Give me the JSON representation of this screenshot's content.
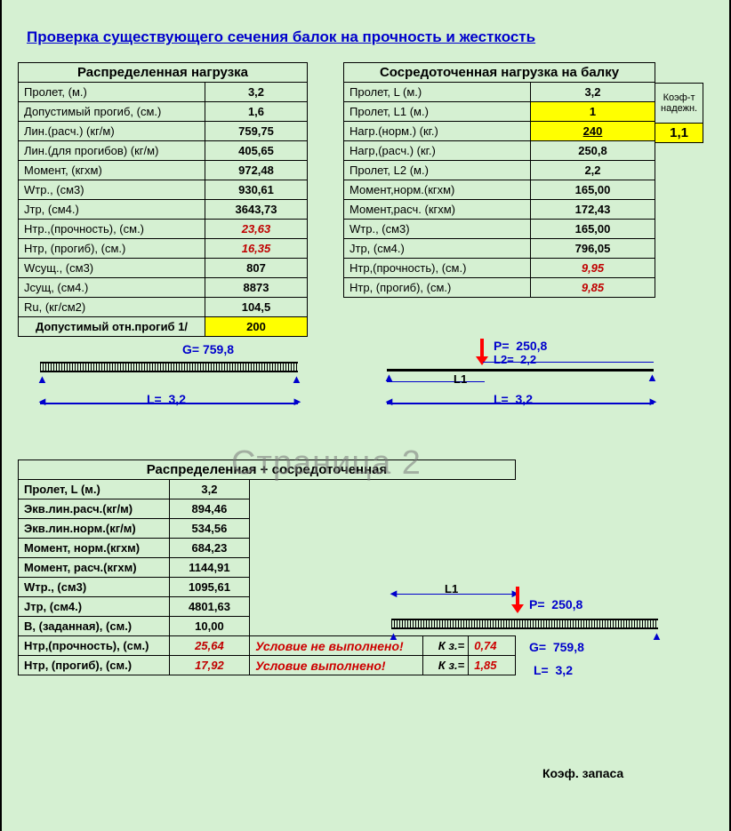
{
  "title": "Проверка существующего сечения балок на прочность и жесткость",
  "watermark": "Страница 2",
  "t1": {
    "header": "Распределенная нагрузка",
    "rows": [
      {
        "l": "Пролет,          (м.)",
        "v": "3,2"
      },
      {
        "l": "Допустимый прогиб, (см.)",
        "v": "1,6"
      },
      {
        "l": "Лин.(расч.)     (кг/м)",
        "v": "759,75"
      },
      {
        "l": "Лин.(для прогибов)   (кг/м)",
        "v": "405,65"
      },
      {
        "l": "Момент,        (кгхм)",
        "v": "972,48"
      },
      {
        "l": "Wтр.,            (см3)",
        "v": "930,61"
      },
      {
        "l": "Jтр,              (см4.)",
        "v": "3643,73"
      },
      {
        "l": "Нтр.,(прочность), (см.)",
        "v": "23,63",
        "red": true
      },
      {
        "l": "Нтр, (прогиб),    (см.)",
        "v": "16,35",
        "red": true
      },
      {
        "l": "Wсущ.,            (см3)",
        "v": "807"
      },
      {
        "l": "Jсущ,             (см4.)",
        "v": "8873"
      },
      {
        "l": "Ru,              (кг/см2)",
        "v": "104,5"
      }
    ],
    "deflection_label": "Допустимый отн.прогиб 1/",
    "deflection_value": "200"
  },
  "t2": {
    "header": "Сосредоточенная нагрузка на балку",
    "koef_label": "Коэф-т надежн.",
    "koef_value": "1,1",
    "rows": [
      {
        "l": "Пролет,   L       (м.)",
        "v": "3,2"
      },
      {
        "l": "Пролет,   L1     (м.)",
        "v": "1",
        "yellow": true
      },
      {
        "l": "Нагр.(норм.)     (кг.)",
        "v": "240",
        "yellow": true,
        "u": true
      },
      {
        "l": "Нагр,(расч.)     (кг.)",
        "v": "250,8"
      },
      {
        "l": "Пролет,   L2     (м.)",
        "v": "2,2"
      },
      {
        "l": "Момент,норм.(кгхм)",
        "v": "165,00"
      },
      {
        "l": "Момент,расч. (кгхм)",
        "v": "172,43"
      },
      {
        "l": "Wтр.,            (см3)",
        "v": "165,00"
      },
      {
        "l": "Jтр,              (см4.)",
        "v": "796,05"
      },
      {
        "l": "Нтр,(прочность),   (см.)",
        "v": "9,95",
        "red": true
      },
      {
        "l": "Нтр, (прогиб),     (см.)",
        "v": "9,85",
        "red": true
      }
    ]
  },
  "d1": {
    "G": "759,8",
    "L": "3,2"
  },
  "d2": {
    "P": "250,8",
    "L2": "2,2",
    "L1": "L1",
    "L": "3,2"
  },
  "t3": {
    "header": "Распределенная + сосредоточенная",
    "rows": [
      {
        "l": "Пролет,  L      (м.)",
        "v": "3,2"
      },
      {
        "l": "Экв.лин.расч.(кг/м)",
        "v": "894,46"
      },
      {
        "l": "Экв.лин.норм.(кг/м)",
        "v": "534,56"
      },
      {
        "l": "Момент, норм.(кгхм)",
        "v": "684,23"
      },
      {
        "l": "Момент, расч.(кгхм)",
        "v": "1144,91"
      },
      {
        "l": "Wтр.,            (см3)",
        "v": "1095,61"
      },
      {
        "l": "Jтр,              (см4.)",
        "v": "4801,63"
      },
      {
        "l": "B, (заданная), (см.)",
        "v": "10,00"
      }
    ],
    "koef_zapasa": "Коэф. запаса",
    "checks": [
      {
        "l": "Нтр,(прочность), (см.)",
        "v": "25,64",
        "c": "Условие не выполнено!",
        "k": "К з.=",
        "kv": "0,74"
      },
      {
        "l": "Нтр, (прогиб),   (см.)",
        "v": "17,92",
        "c": "Условие выполнено!",
        "k": "К з.=",
        "kv": "1,85"
      }
    ]
  },
  "d3": {
    "L1": "L1",
    "P": "250,8",
    "G": "759,8",
    "L": "3,2"
  },
  "colors": {
    "bg": "#d5f0d2",
    "title": "#0000cc",
    "red": "#c00000",
    "yellow": "#ffff00",
    "dim": "#0000cc",
    "arrow": "#f00",
    "watermark": "rgba(120,120,120,0.55)"
  }
}
